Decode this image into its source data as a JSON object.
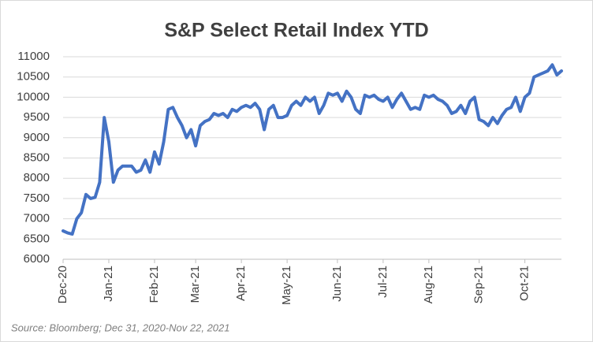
{
  "chart_data": {
    "type": "line",
    "title": "S&P Select Retail Index YTD",
    "source": "Source: Bloomberg; Dec 31, 2020-Nov 22, 2021",
    "categories": [
      "Dec-20",
      null,
      null,
      null,
      null,
      null,
      null,
      null,
      null,
      null,
      "Jan-21",
      null,
      null,
      null,
      null,
      null,
      null,
      null,
      null,
      null,
      "Feb-21",
      null,
      null,
      null,
      null,
      null,
      null,
      null,
      null,
      "Mar-21",
      null,
      null,
      null,
      null,
      null,
      null,
      null,
      null,
      null,
      "Apr-21",
      null,
      null,
      null,
      null,
      null,
      null,
      null,
      null,
      null,
      "May-21",
      null,
      null,
      null,
      null,
      null,
      null,
      null,
      null,
      null,
      null,
      "Jun-21",
      null,
      null,
      null,
      null,
      null,
      null,
      null,
      null,
      null,
      "Jul-21",
      null,
      null,
      null,
      null,
      null,
      null,
      null,
      null,
      null,
      "Aug-21",
      null,
      null,
      null,
      null,
      null,
      null,
      null,
      null,
      null,
      null,
      "Sep-21",
      null,
      null,
      null,
      null,
      null,
      null,
      null,
      null,
      null,
      "Oct-21",
      null,
      null,
      null,
      null,
      null,
      null,
      null,
      null
    ],
    "values": [
      6700,
      6650,
      6620,
      7000,
      7150,
      7600,
      7500,
      7530,
      7900,
      9500,
      8900,
      7900,
      8200,
      8300,
      8300,
      8300,
      8150,
      8200,
      8450,
      8150,
      8650,
      8350,
      8900,
      9700,
      9750,
      9500,
      9300,
      9000,
      9200,
      8800,
      9300,
      9400,
      9450,
      9600,
      9550,
      9600,
      9500,
      9700,
      9650,
      9750,
      9800,
      9750,
      9850,
      9700,
      9200,
      9700,
      9800,
      9500,
      9500,
      9550,
      9800,
      9900,
      9800,
      10000,
      9900,
      10000,
      9600,
      9800,
      10100,
      10050,
      10100,
      9900,
      10150,
      10000,
      9700,
      9600,
      10050,
      10000,
      10050,
      9950,
      9900,
      10000,
      9750,
      9950,
      10100,
      9900,
      9700,
      9750,
      9700,
      10050,
      10000,
      10050,
      9950,
      9900,
      9800,
      9600,
      9650,
      9800,
      9600,
      9900,
      10000,
      9450,
      9400,
      9300,
      9500,
      9350,
      9550,
      9700,
      9750,
      10000,
      9650,
      10000,
      10100,
      10500,
      10550,
      10600,
      10650,
      10800,
      10550,
      10650
    ],
    "color": "#4472c4",
    "ylim": [
      6000,
      11000
    ],
    "yticks": [
      6000,
      6500,
      7000,
      7500,
      8000,
      8500,
      9000,
      9500,
      10000,
      10500,
      11000
    ],
    "grid": true
  }
}
